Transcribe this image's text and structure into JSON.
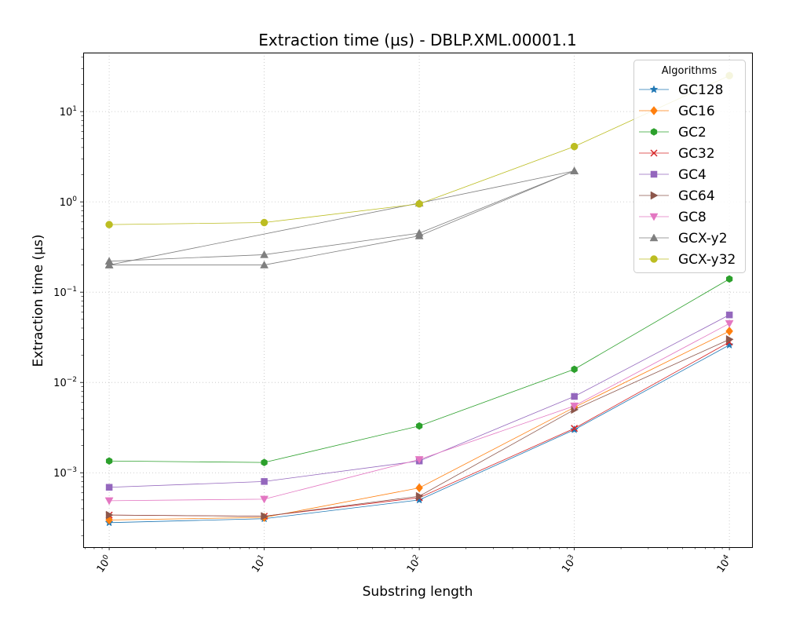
{
  "chart_data": {
    "type": "line",
    "title": "Extraction time (µs) - DBLP.XML.00001.1",
    "xlabel": "Substring length",
    "ylabel": "Extraction time (µs)",
    "xscale": "log",
    "yscale": "log",
    "x": [
      1,
      10,
      100,
      1000,
      10000
    ],
    "xlim": [
      0.68,
      14000
    ],
    "ylim": [
      0.00015,
      45
    ],
    "grid": true,
    "x_ticks": [
      {
        "value": 1,
        "mant": "10",
        "exp": "0"
      },
      {
        "value": 10,
        "mant": "10",
        "exp": "1"
      },
      {
        "value": 100,
        "mant": "10",
        "exp": "2"
      },
      {
        "value": 1000,
        "mant": "10",
        "exp": "3"
      },
      {
        "value": 10000,
        "mant": "10",
        "exp": "4"
      }
    ],
    "y_ticks": [
      {
        "value": 0.001,
        "mant": "10",
        "exp": "−3"
      },
      {
        "value": 0.01,
        "mant": "10",
        "exp": "−2"
      },
      {
        "value": 0.1,
        "mant": "10",
        "exp": "−1"
      },
      {
        "value": 1,
        "mant": "10",
        "exp": "0"
      },
      {
        "value": 10,
        "mant": "10",
        "exp": "1"
      }
    ],
    "legend": {
      "title": "Algorithms",
      "position": "top-right"
    },
    "series": [
      {
        "name": "GC128",
        "color": "#1f77b4",
        "marker": "star",
        "values": [
          0.00028,
          0.00031,
          0.0005,
          0.003,
          0.026
        ]
      },
      {
        "name": "GC16",
        "color": "#ff7f0e",
        "marker": "diamond",
        "values": [
          0.0003,
          0.00032,
          0.00068,
          0.0053,
          0.037
        ]
      },
      {
        "name": "GC2",
        "color": "#2ca02c",
        "marker": "hexagon",
        "values": [
          0.00135,
          0.0013,
          0.0033,
          0.014,
          0.14
        ]
      },
      {
        "name": "GC32",
        "color": "#d62728",
        "marker": "x",
        "values": [
          0.00034,
          0.00033,
          0.00053,
          0.0031,
          0.028
        ]
      },
      {
        "name": "GC4",
        "color": "#9467bd",
        "marker": "square",
        "values": [
          0.00069,
          0.0008,
          0.00135,
          0.007,
          0.056
        ]
      },
      {
        "name": "GC64",
        "color": "#8c564b",
        "marker": "triangle-right",
        "values": [
          0.00034,
          0.00033,
          0.00055,
          0.005,
          0.03
        ]
      },
      {
        "name": "GC8",
        "color": "#e377c2",
        "marker": "triangle-down",
        "values": [
          0.00049,
          0.00051,
          0.0014,
          0.0055,
          0.045
        ]
      },
      {
        "name": "GCX-y2",
        "color": "#7f7f7f",
        "marker": "triangle-up",
        "values": [
          0.2,
          0.2,
          0.42,
          2.2,
          null
        ]
      },
      {
        "name": "GCX-y2",
        "color": "#7f7f7f",
        "marker": "triangle-up",
        "show_in_legend": false,
        "values": [
          0.22,
          0.26,
          0.45,
          2.2,
          null
        ]
      },
      {
        "name": "GCX-y2",
        "color": "#7f7f7f",
        "marker": "triangle-up",
        "show_in_legend": false,
        "values": [
          0.2,
          null,
          0.97,
          2.2,
          null
        ]
      },
      {
        "name": "GCX-y32",
        "color": "#bcbd22",
        "marker": "circle",
        "values": [
          0.56,
          0.59,
          0.95,
          4.1,
          25
        ]
      }
    ]
  }
}
